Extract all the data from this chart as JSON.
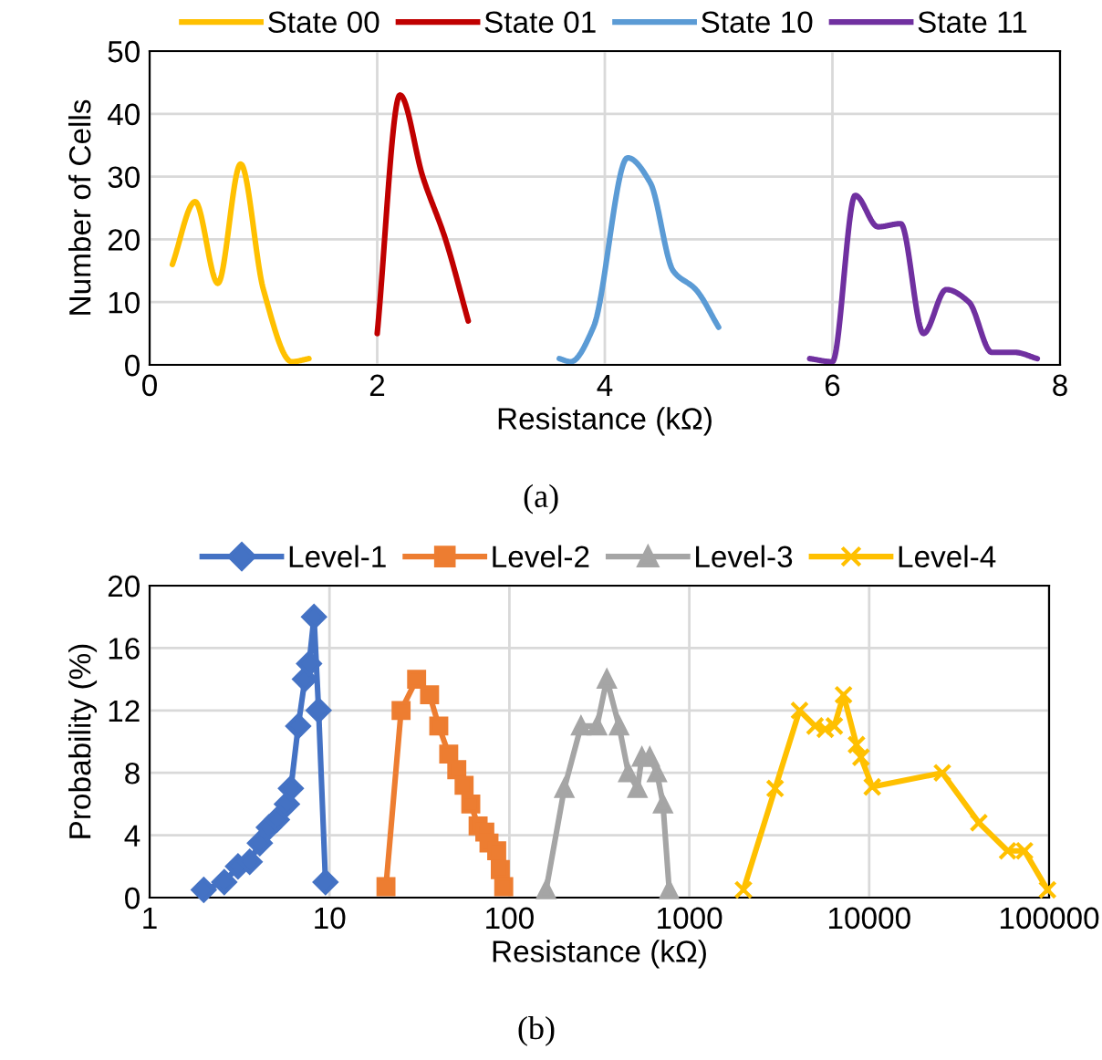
{
  "chart_data": [
    {
      "type": "line",
      "xlabel": "Resistance (kΩ)",
      "ylabel": "Number of Cells",
      "xlim": [
        0,
        8
      ],
      "xticks": [
        0,
        2,
        4,
        6,
        8
      ],
      "ylim": [
        0,
        50
      ],
      "yticks": [
        0,
        10,
        20,
        30,
        40,
        50
      ],
      "grid": true,
      "legend": "top",
      "marker": "none",
      "line_style": "solid",
      "annotations": [
        "(a)"
      ],
      "series": [
        {
          "name": "State 00",
          "color": "#ffc000",
          "x": [
            0.2,
            0.4,
            0.6,
            0.8,
            1.0,
            1.25,
            1.4
          ],
          "values": [
            16,
            26,
            13,
            32,
            12,
            0.5,
            1
          ]
        },
        {
          "name": "State 01",
          "color": "#c00000",
          "x": [
            2.0,
            2.2,
            2.4,
            2.6,
            2.8
          ],
          "values": [
            5,
            43,
            30,
            20,
            7
          ]
        },
        {
          "name": "State 10",
          "color": "#5b9bd5",
          "x": [
            3.6,
            3.7,
            3.9,
            4.2,
            4.4,
            4.6,
            4.8,
            5.0
          ],
          "values": [
            1,
            0.5,
            6,
            33,
            29,
            15,
            12,
            6
          ]
        },
        {
          "name": "State 11",
          "color": "#7030a0",
          "x": [
            5.8,
            6.0,
            6.2,
            6.4,
            6.6,
            6.8,
            7.0,
            7.2,
            7.4,
            7.6,
            7.8
          ],
          "values": [
            1,
            0.5,
            27,
            22,
            22.5,
            5,
            12,
            10,
            2,
            2,
            1
          ]
        }
      ]
    },
    {
      "type": "line",
      "xlabel": "Resistance (kΩ)",
      "ylabel": "Probability (%)",
      "log": "x",
      "xlim": [
        1,
        100000
      ],
      "xticks": [
        1,
        10,
        100,
        1000,
        10000,
        100000
      ],
      "ylim": [
        0,
        20
      ],
      "yticks": [
        0,
        4,
        8,
        12,
        16,
        20
      ],
      "grid": true,
      "legend": "top",
      "line_style": "solid",
      "annotations": [
        "(b)"
      ],
      "series": [
        {
          "name": "Level-1",
          "color": "#4472c4",
          "marker": "diamond",
          "x": [
            2.0,
            2.6,
            3.1,
            3.6,
            4.1,
            4.6,
            5.1,
            5.8,
            6.1,
            6.7,
            7.3,
            7.7,
            8.2,
            8.7,
            9.5
          ],
          "values": [
            0.5,
            1,
            2,
            2.3,
            3.5,
            4.5,
            5,
            6,
            7,
            11,
            14,
            15,
            18,
            12,
            1
          ]
        },
        {
          "name": "Level-2",
          "color": "#ed7d31",
          "marker": "square",
          "x": [
            20.6,
            25,
            30.5,
            36,
            40.5,
            46,
            51,
            56,
            61,
            67,
            73,
            77,
            85,
            89,
            93
          ],
          "values": [
            0.7,
            12,
            14,
            13,
            11,
            9.2,
            8.2,
            7.2,
            6,
            4.6,
            4.2,
            3.5,
            3,
            1.8,
            0.7
          ]
        },
        {
          "name": "Level-3",
          "color": "#a5a5a5",
          "marker": "triangle",
          "x": [
            160,
            202,
            250,
            307,
            348,
            407,
            458,
            515,
            545,
            603,
            661,
            714,
            773
          ],
          "values": [
            0.5,
            7,
            11,
            11,
            14,
            11,
            8,
            7,
            9,
            9,
            8,
            6,
            0.5
          ]
        },
        {
          "name": "Level-4",
          "color": "#ffc000",
          "marker": "cross",
          "x": [
            2000,
            3000,
            4100,
            5000,
            5700,
            6400,
            7200,
            8500,
            9000,
            10400,
            25500,
            40700,
            58800,
            73000,
            98000
          ],
          "values": [
            0.5,
            7,
            12,
            11,
            10.8,
            11,
            13,
            9.8,
            9,
            7.1,
            8,
            4.8,
            3,
            3,
            0.5
          ]
        }
      ]
    }
  ]
}
